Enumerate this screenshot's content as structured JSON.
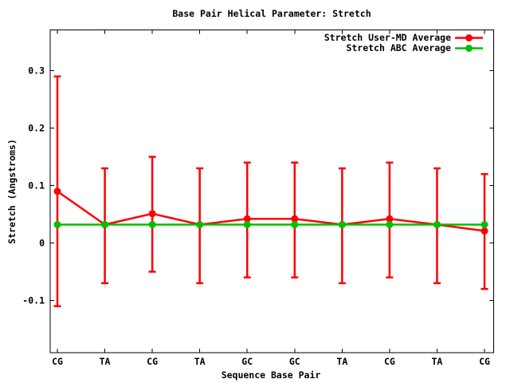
{
  "window": {
    "background_color": "#ffffff",
    "accent_colors": {
      "series1": "#ff0000",
      "series2": "#00c000",
      "axis": "#000000"
    }
  },
  "chart_data": {
    "type": "line",
    "title": "Base Pair Helical Parameter: Stretch",
    "xlabel": "Sequence Base Pair",
    "ylabel": "Stretch (Angstroms)",
    "categories": [
      "CG",
      "TA",
      "CG",
      "TA",
      "GC",
      "GC",
      "TA",
      "CG",
      "TA",
      "CG"
    ],
    "series": [
      {
        "name": "Stretch User-MD Average",
        "color": "#ff0000",
        "marker": "filled-circle",
        "values": [
          0.09,
          0.032,
          0.051,
          0.032,
          0.042,
          0.042,
          0.032,
          0.042,
          0.032,
          0.021
        ],
        "error_high": [
          0.29,
          0.13,
          0.15,
          0.13,
          0.14,
          0.14,
          0.13,
          0.14,
          0.13,
          0.12
        ],
        "error_low": [
          -0.11,
          -0.07,
          -0.05,
          -0.07,
          -0.06,
          -0.06,
          -0.07,
          -0.06,
          -0.07,
          -0.08
        ]
      },
      {
        "name": "Stretch ABC Average",
        "color": "#00c000",
        "marker": "filled-circle",
        "values": [
          0.032,
          0.032,
          0.032,
          0.032,
          0.032,
          0.032,
          0.032,
          0.032,
          0.032,
          0.032
        ]
      }
    ],
    "yticks": [
      -0.1,
      0,
      0.1,
      0.2,
      0.3
    ],
    "ytick_labels": [
      "-0.1",
      "0",
      "0.1",
      "0.2",
      "0.3"
    ],
    "ylim": [
      -0.191,
      0.371
    ],
    "grid": false,
    "legend_position": "top-right-inside"
  }
}
